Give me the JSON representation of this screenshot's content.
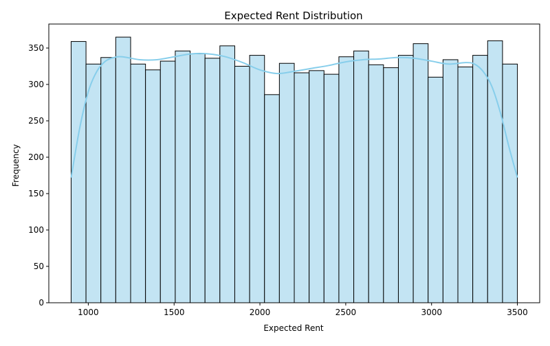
{
  "chart_data": {
    "type": "histogram",
    "title": "Expected Rent Distribution",
    "xlabel": "Expected Rent",
    "ylabel": "Frequency",
    "xlim": [
      770,
      3630
    ],
    "ylim": [
      0,
      383
    ],
    "x_ticks": [
      1000,
      1500,
      2000,
      2500,
      3000,
      3500
    ],
    "y_ticks": [
      0,
      50,
      100,
      150,
      200,
      250,
      300,
      350
    ],
    "bin_start": 900,
    "bin_width": 86.67,
    "values": [
      359,
      328,
      337,
      365,
      328,
      320,
      332,
      346,
      342,
      336,
      353,
      325,
      340,
      286,
      329,
      316,
      319,
      314,
      338,
      346,
      327,
      323,
      340,
      356,
      310,
      334,
      324,
      340,
      360,
      328
    ],
    "bar_color": "#c3e4f3",
    "bar_edge": "#000000",
    "kde": {
      "color": "#87ceeb",
      "x": [
        900,
        950,
        1000,
        1050,
        1100,
        1150,
        1200,
        1300,
        1400,
        1500,
        1600,
        1700,
        1800,
        1900,
        2000,
        2100,
        2200,
        2300,
        2400,
        2500,
        2600,
        2700,
        2800,
        2900,
        3000,
        3100,
        3200,
        3250,
        3300,
        3350,
        3400,
        3450,
        3500
      ],
      "y": [
        172,
        240,
        290,
        318,
        332,
        337,
        338,
        334,
        334,
        338,
        342,
        342,
        338,
        330,
        320,
        315,
        318,
        322,
        326,
        331,
        334,
        335,
        337,
        336,
        332,
        328,
        330,
        328,
        318,
        298,
        262,
        215,
        172
      ]
    },
    "grid": false,
    "legend": "none"
  }
}
